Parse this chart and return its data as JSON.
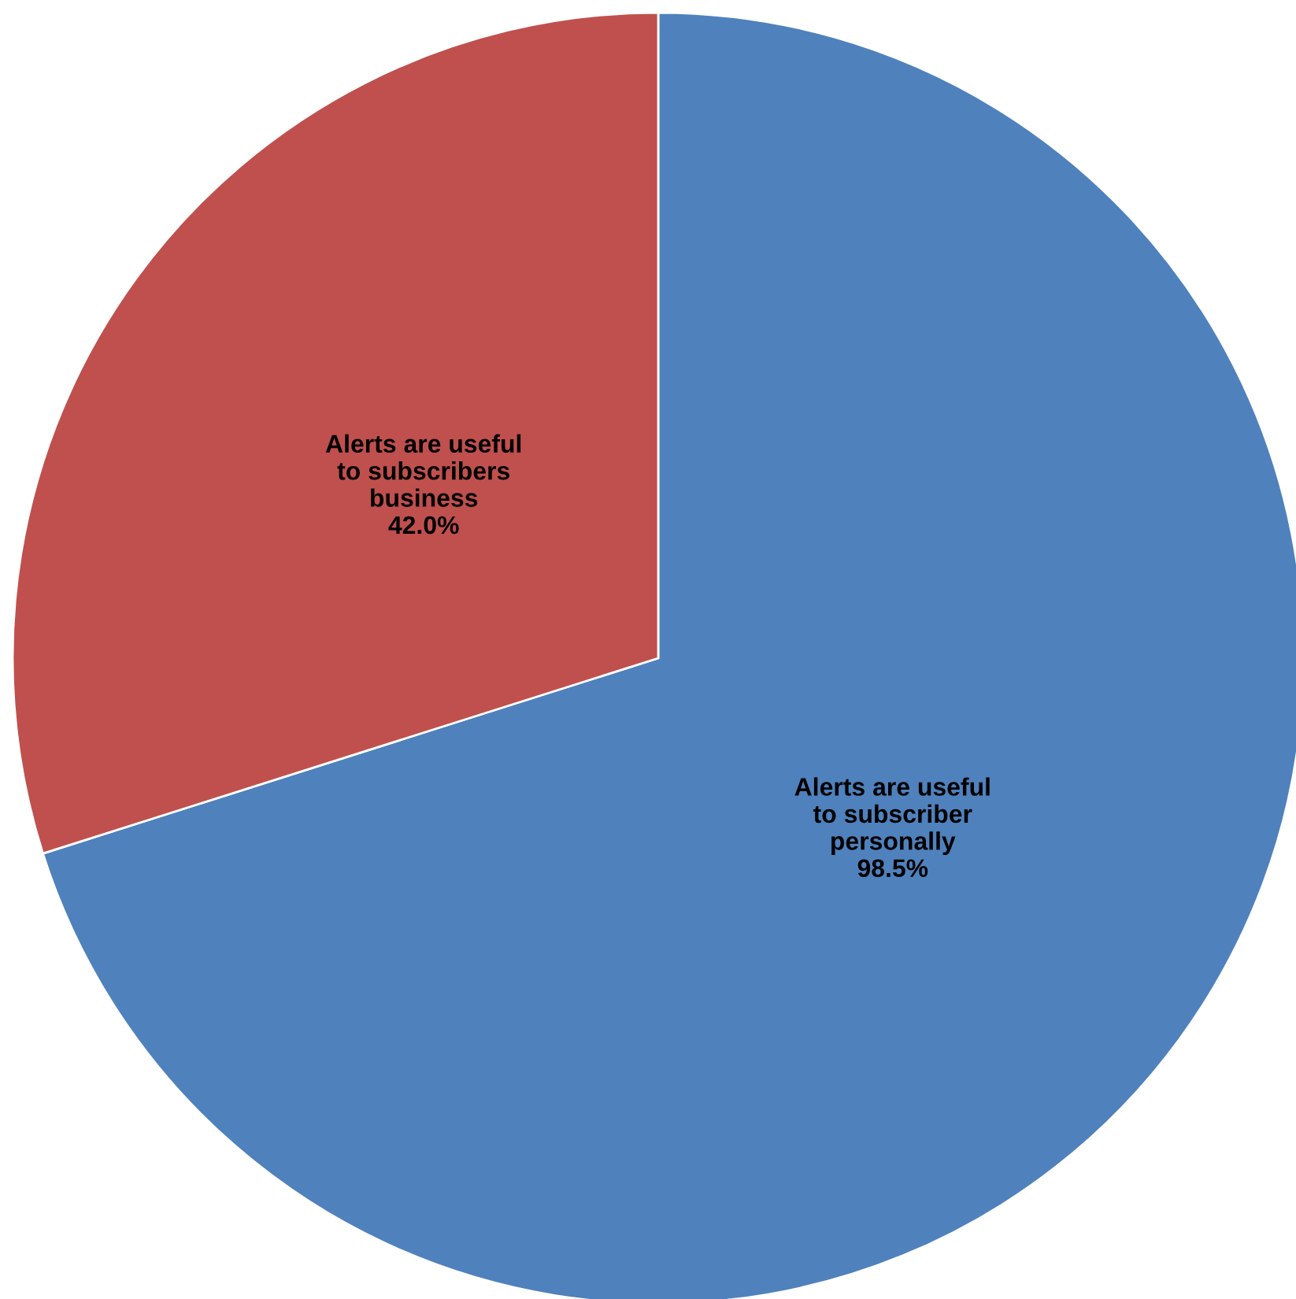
{
  "chart_data": {
    "type": "pie",
    "categories": [
      "Alerts are useful\nto subscriber\npersonally",
      "Alerts are useful\nto subscribers\nbusiness"
    ],
    "values": [
      98.5,
      42.0
    ],
    "value_labels": [
      "98.5%",
      "42.0%"
    ],
    "colors": [
      "#4f81bd",
      "#c0504d"
    ],
    "legend": false
  }
}
